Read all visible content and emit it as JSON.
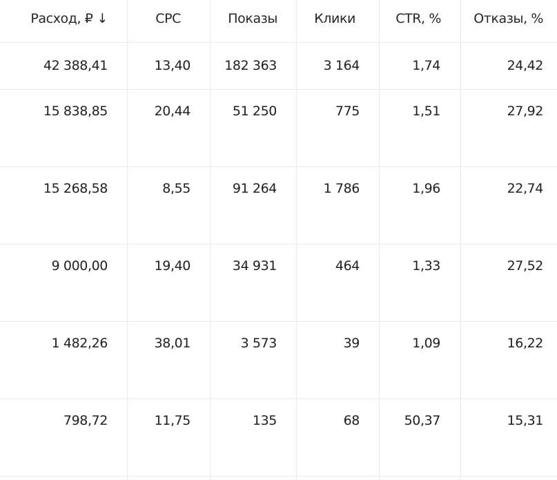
{
  "table": {
    "headers": [
      {
        "label": "Расход, ₽",
        "sort_icon": "↓"
      },
      {
        "label": "CPC"
      },
      {
        "label": "Показы"
      },
      {
        "label": "Клики"
      },
      {
        "label": "CTR, %"
      },
      {
        "label": "Отказы, %"
      }
    ],
    "rows": [
      [
        "42 388,41",
        "13,40",
        "182 363",
        "3 164",
        "1,74",
        "24,42"
      ],
      [
        "15 838,85",
        "20,44",
        "51 250",
        "775",
        "1,51",
        "27,92"
      ],
      [
        "15 268,58",
        "8,55",
        "91 264",
        "1 786",
        "1,96",
        "22,74"
      ],
      [
        "9 000,00",
        "19,40",
        "34 931",
        "464",
        "1,33",
        "27,52"
      ],
      [
        "1 482,26",
        "38,01",
        "3 573",
        "39",
        "1,09",
        "16,22"
      ],
      [
        "798,72",
        "11,75",
        "135",
        "68",
        "50,37",
        "15,31"
      ]
    ]
  }
}
